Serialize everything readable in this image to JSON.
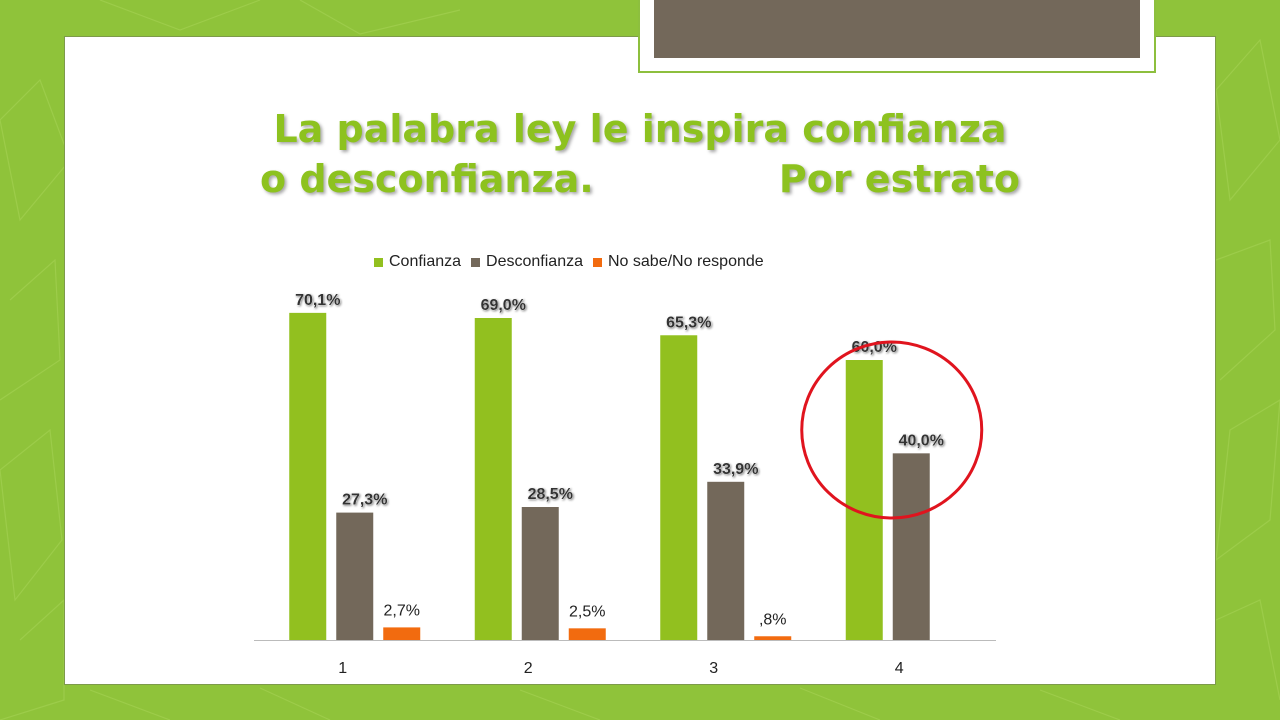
{
  "title": {
    "line1": "La palabra ley le inspira confianza",
    "line2": "o desconfianza.              Por estrato"
  },
  "colors": {
    "background": "#8fc33a",
    "title": "#8dc21f",
    "highlight_circle": "#e0141e",
    "axis": "#bbbbbb"
  },
  "chart_data": {
    "type": "bar",
    "categories": [
      "1",
      "2",
      "3",
      "4"
    ],
    "series": [
      {
        "name": "Confianza",
        "color": "#92c01f",
        "values": [
          70.1,
          69.0,
          65.3,
          60.0
        ],
        "labels": [
          "70,1%",
          "69,0%",
          "65,3%",
          "60,0%"
        ],
        "label_style": "bold-shadow"
      },
      {
        "name": "Desconfianza",
        "color": "#73685a",
        "values": [
          27.3,
          28.5,
          33.9,
          40.0
        ],
        "labels": [
          "27,3%",
          "28,5%",
          "33,9%",
          "40,0%"
        ],
        "label_style": "bold-shadow"
      },
      {
        "name": "No sabe/No responde",
        "color": "#f26b0f",
        "values": [
          2.7,
          2.5,
          0.8,
          null
        ],
        "labels": [
          "2,7%",
          "2,5%",
          ",8%",
          ""
        ],
        "label_style": "plain"
      }
    ],
    "ylim": [
      0,
      75
    ],
    "grid": false,
    "legend_position": "top",
    "highlight": {
      "category": "4",
      "shape": "circle"
    }
  }
}
